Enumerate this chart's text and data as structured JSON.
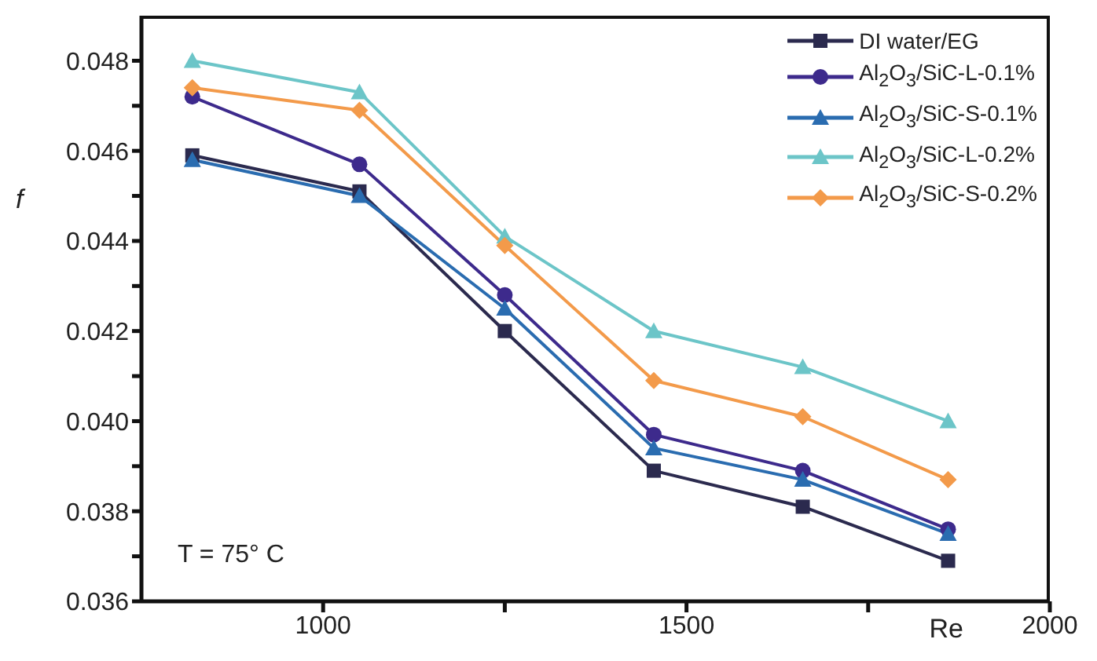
{
  "chart_data": {
    "type": "line",
    "xlabel": "Re",
    "ylabel": "f",
    "annotations": [
      "T = 75° C"
    ],
    "x": [
      820,
      1050,
      1250,
      1455,
      1660,
      1860
    ],
    "xlim": [
      750,
      2000
    ],
    "xticks": [
      1000,
      {
        "value": 1250,
        "label": null
      },
      1500,
      {
        "value": 1750,
        "label": null
      },
      2000
    ],
    "ylim": [
      0.036,
      0.049
    ],
    "yticks": [
      0.036,
      {
        "value": 0.037,
        "label": null
      },
      0.038,
      {
        "value": 0.039,
        "label": null
      },
      {
        "value": 0.04,
        "label": "0.040"
      },
      {
        "value": 0.041,
        "label": null
      },
      0.042,
      {
        "value": 0.043,
        "label": null
      },
      0.044,
      {
        "value": 0.045,
        "label": null
      },
      0.046,
      {
        "value": 0.047,
        "label": null
      },
      0.048
    ],
    "grid": false,
    "legend": "top right",
    "line_style": "solid",
    "series": [
      {
        "name": "DI water/EG",
        "color": "#2b2a4e",
        "marker": "square",
        "values": [
          0.0459,
          0.0451,
          0.042,
          0.0389,
          0.0381,
          0.0369
        ]
      },
      {
        "name": "Al$_{2}$O$_{3}$/SiC-L-0.1%",
        "color": "#3d2a8c",
        "marker": "circle",
        "values": [
          0.0472,
          0.0457,
          0.0428,
          0.0397,
          0.0389,
          0.0376
        ]
      },
      {
        "name": "Al$_{2}$O$_{3}$/SiC-S-0.1%",
        "color": "#2a6cb0",
        "marker": "triangle",
        "values": [
          0.0458,
          0.045,
          0.0425,
          0.0394,
          0.0387,
          0.0375
        ]
      },
      {
        "name": "Al$_{2}$O$_{3}$/SiC-L-0.2%",
        "color": "#6cc5c8",
        "marker": "triangle",
        "values": [
          0.048,
          0.0473,
          0.0441,
          0.042,
          0.0412,
          0.04
        ]
      },
      {
        "name": "Al$_{2}$O$_{3}$/SiC-S-0.2%",
        "color": "#f39a4a",
        "marker": "diamond",
        "values": [
          0.0474,
          0.0469,
          0.0439,
          0.0409,
          0.0401,
          0.0387
        ]
      }
    ]
  }
}
